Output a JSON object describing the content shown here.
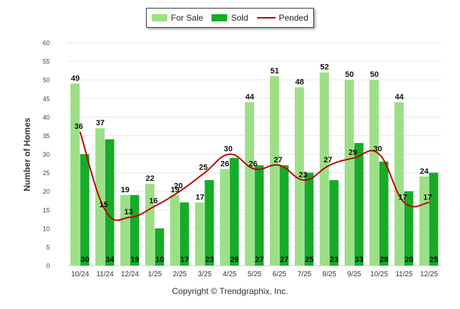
{
  "chart_data": {
    "type": "bar",
    "ylabel": "Number of Homes",
    "ylim": [
      0,
      60
    ],
    "ytick_step": 5,
    "categories": [
      "10/24",
      "11/24",
      "12/24",
      "1/25",
      "2/25",
      "3/25",
      "4/25",
      "5/25",
      "6/25",
      "7/25",
      "8/25",
      "9/25",
      "10/25",
      "11/25",
      "12/25"
    ],
    "series": [
      {
        "name": "For Sale",
        "kind": "bar",
        "color": "#9ddf86",
        "values": [
          49,
          37,
          19,
          22,
          19,
          17,
          26,
          44,
          51,
          48,
          52,
          50,
          50,
          44,
          24
        ]
      },
      {
        "name": "Sold",
        "kind": "bar",
        "color": "#16ab28",
        "values": [
          30,
          34,
          19,
          10,
          17,
          23,
          29,
          27,
          27,
          25,
          23,
          33,
          28,
          20,
          25
        ]
      },
      {
        "name": "Pended",
        "kind": "line",
        "color": "#c00000",
        "values": [
          36,
          15,
          13,
          16,
          20,
          25,
          30,
          26,
          27,
          23,
          27,
          29,
          30,
          17,
          17
        ]
      }
    ],
    "legend_position": "top-center",
    "grid": true
  },
  "copyright": "Copyright © Trendgraphix, Inc."
}
